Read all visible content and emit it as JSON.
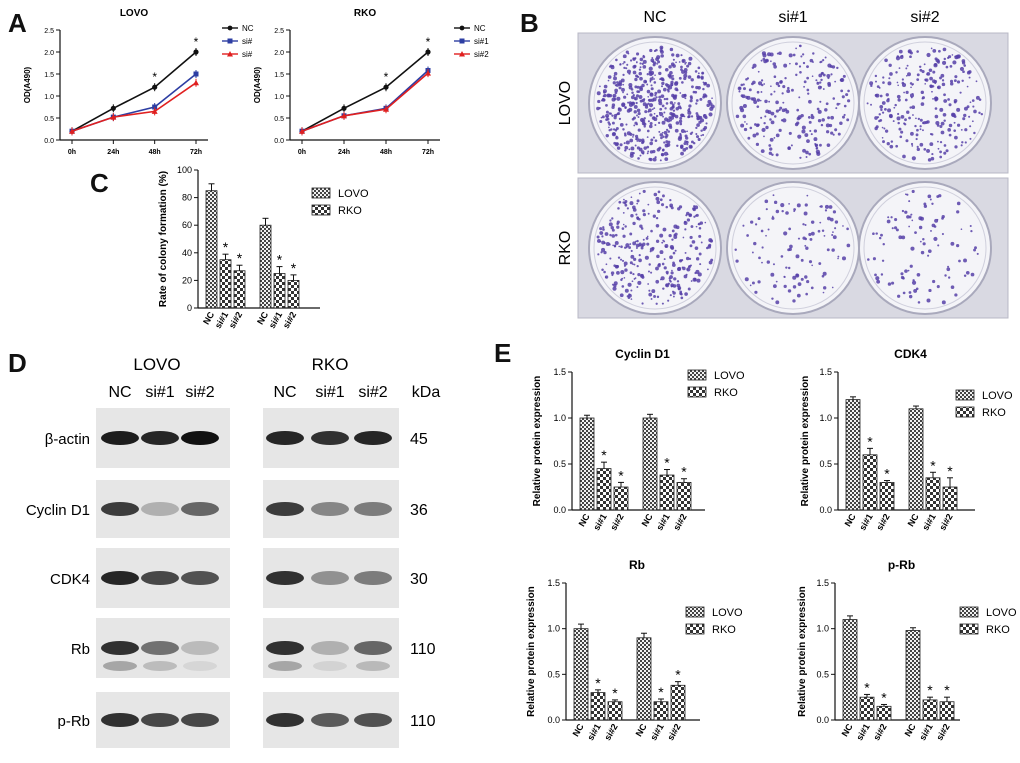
{
  "colors": {
    "nc": "#111111",
    "si1": "#2d3ea3",
    "si2": "#e02020",
    "dish_stain": "#5640a8",
    "blot_band": "#111111"
  },
  "panels": {
    "a": "A",
    "b": "B",
    "c": "C",
    "d": "D",
    "e": "E"
  },
  "chart_data": [
    {
      "id": "A-LOVO",
      "type": "line",
      "title": "LOVO",
      "xlabel": "",
      "ylabel": "OD(A490)",
      "categories": [
        "0h",
        "24h",
        "48h",
        "72h"
      ],
      "ylim": [
        0,
        2.5
      ],
      "yticks": [
        0.0,
        0.5,
        1.0,
        1.5,
        2.0,
        2.5
      ],
      "series": [
        {
          "name": "NC",
          "marker": "circle",
          "color": "#111111",
          "values": [
            0.2,
            0.72,
            1.2,
            2.0
          ]
        },
        {
          "name": "si#",
          "marker": "square",
          "color": "#2d3ea3",
          "values": [
            0.2,
            0.52,
            0.75,
            1.5
          ]
        },
        {
          "name": "si#",
          "marker": "triangle",
          "color": "#e02020",
          "values": [
            0.2,
            0.52,
            0.65,
            1.3
          ]
        }
      ],
      "stars": [
        "",
        "",
        "*",
        "*"
      ],
      "legend": "right"
    },
    {
      "id": "A-RKO",
      "type": "line",
      "title": "RKO",
      "xlabel": "",
      "ylabel": "OD(A490)",
      "categories": [
        "0h",
        "24h",
        "48h",
        "72h"
      ],
      "ylim": [
        0,
        2.5
      ],
      "yticks": [
        0.0,
        0.5,
        1.0,
        1.5,
        2.0,
        2.5
      ],
      "series": [
        {
          "name": "NC",
          "marker": "circle",
          "color": "#111111",
          "values": [
            0.2,
            0.72,
            1.2,
            2.0
          ]
        },
        {
          "name": "si#1",
          "marker": "square",
          "color": "#2d3ea3",
          "values": [
            0.2,
            0.55,
            0.72,
            1.58
          ]
        },
        {
          "name": "si#2",
          "marker": "triangle",
          "color": "#e02020",
          "values": [
            0.2,
            0.55,
            0.7,
            1.52
          ]
        }
      ],
      "stars": [
        "",
        "",
        "*",
        "*"
      ],
      "legend": "right"
    },
    {
      "id": "C",
      "type": "bar",
      "title": "",
      "xlabel": "",
      "ylabel": "Rate of colony formation (%)",
      "ylim": [
        0,
        100
      ],
      "yticks": [
        0,
        20,
        40,
        60,
        80,
        100
      ],
      "groups": [
        {
          "name": "LOVO",
          "categories": [
            "NC",
            "si#1",
            "si#2"
          ],
          "values": [
            85,
            35,
            27
          ],
          "errors": [
            5,
            4,
            4
          ],
          "stars": [
            "",
            "*",
            "*"
          ]
        },
        {
          "name": "RKO",
          "categories": [
            "NC",
            "si#1",
            "si#2"
          ],
          "values": [
            60,
            25,
            20
          ],
          "errors": [
            5,
            5,
            4
          ],
          "stars": [
            "",
            "*",
            "*"
          ]
        }
      ],
      "legend": [
        "LOVO",
        "RKO"
      ],
      "legend_position": "right"
    },
    {
      "id": "E-CyclinD1",
      "type": "bar",
      "title": "Cyclin D1",
      "xlabel": "",
      "ylabel": "Relative protein expression",
      "ylim": [
        0,
        1.5
      ],
      "yticks": [
        0.0,
        0.5,
        1.0,
        1.5
      ],
      "groups": [
        {
          "name": "LOVO",
          "categories": [
            "NC",
            "si#1",
            "si#2"
          ],
          "values": [
            1.0,
            0.45,
            0.25
          ],
          "errors": [
            0.03,
            0.07,
            0.05
          ],
          "stars": [
            "",
            "*",
            "*"
          ]
        },
        {
          "name": "RKO",
          "categories": [
            "NC",
            "si#1",
            "si#2"
          ],
          "values": [
            1.0,
            0.38,
            0.3
          ],
          "errors": [
            0.04,
            0.06,
            0.04
          ],
          "stars": [
            "",
            "*",
            "*"
          ]
        }
      ],
      "legend": [
        "LOVO",
        "RKO"
      ],
      "legend_position": "right"
    },
    {
      "id": "E-CDK4",
      "type": "bar",
      "title": "CDK4",
      "xlabel": "",
      "ylabel": "Relative protein expression",
      "ylim": [
        0,
        1.5
      ],
      "yticks": [
        0.0,
        0.5,
        1.0,
        1.5
      ],
      "groups": [
        {
          "name": "LOVO",
          "categories": [
            "NC",
            "si#1",
            "si#2"
          ],
          "values": [
            1.2,
            0.6,
            0.3
          ],
          "errors": [
            0.03,
            0.07,
            0.02
          ],
          "stars": [
            "",
            "*",
            "*"
          ]
        },
        {
          "name": "RKO",
          "categories": [
            "NC",
            "si#1",
            "si#2"
          ],
          "values": [
            1.1,
            0.35,
            0.25
          ],
          "errors": [
            0.03,
            0.06,
            0.1
          ],
          "stars": [
            "",
            "*",
            "*"
          ]
        }
      ],
      "legend": [
        "LOVO",
        "RKO"
      ],
      "legend_position": "right"
    },
    {
      "id": "E-Rb",
      "type": "bar",
      "title": "Rb",
      "xlabel": "",
      "ylabel": "Relative protein expression",
      "ylim": [
        0,
        1.5
      ],
      "yticks": [
        0.0,
        0.5,
        1.0,
        1.5
      ],
      "groups": [
        {
          "name": "LOVO",
          "categories": [
            "NC",
            "si#1",
            "si#2"
          ],
          "values": [
            1.0,
            0.3,
            0.2
          ],
          "errors": [
            0.05,
            0.03,
            0.02
          ],
          "stars": [
            "",
            "*",
            "*"
          ]
        },
        {
          "name": "RKO",
          "categories": [
            "NC",
            "si#1",
            "si#2"
          ],
          "values": [
            0.9,
            0.2,
            0.38
          ],
          "errors": [
            0.05,
            0.03,
            0.04
          ],
          "stars": [
            "",
            "*",
            "*"
          ]
        }
      ],
      "legend": [
        "LOVO",
        "RKO"
      ],
      "legend_position": "right"
    },
    {
      "id": "E-pRb",
      "type": "bar",
      "title": "p-Rb",
      "xlabel": "",
      "ylabel": "Relative protein expression",
      "ylim": [
        0,
        1.5
      ],
      "yticks": [
        0.0,
        0.5,
        1.0,
        1.5
      ],
      "groups": [
        {
          "name": "LOVO",
          "categories": [
            "NC",
            "si#1",
            "si#2"
          ],
          "values": [
            1.1,
            0.25,
            0.15
          ],
          "errors": [
            0.04,
            0.03,
            0.02
          ],
          "stars": [
            "",
            "*",
            "*"
          ]
        },
        {
          "name": "RKO",
          "categories": [
            "NC",
            "si#1",
            "si#2"
          ],
          "values": [
            0.98,
            0.22,
            0.2
          ],
          "errors": [
            0.03,
            0.03,
            0.05
          ],
          "stars": [
            "",
            "*",
            "*"
          ]
        }
      ],
      "legend": [
        "LOVO",
        "RKO"
      ],
      "legend_position": "right"
    }
  ],
  "colony": {
    "columns": [
      "NC",
      "si#1",
      "si#2"
    ],
    "rows": [
      "LOVO",
      "RKO"
    ],
    "density": [
      [
        1.0,
        0.45,
        0.5
      ],
      [
        0.6,
        0.22,
        0.2
      ]
    ]
  },
  "blot": {
    "groups": [
      {
        "name": "LOVO",
        "lanes": [
          "NC",
          "si#1",
          "si#2"
        ]
      },
      {
        "name": "RKO",
        "lanes": [
          "NC",
          "si#1",
          "si#2"
        ]
      }
    ],
    "kda_label": "kDa",
    "rows": [
      {
        "protein": "β-actin",
        "kda": "45",
        "intensity": [
          [
            0.95,
            0.9,
            1.0
          ],
          [
            0.9,
            0.85,
            0.9
          ]
        ]
      },
      {
        "protein": "Cyclin D1",
        "kda": "36",
        "intensity": [
          [
            0.8,
            0.25,
            0.6
          ],
          [
            0.8,
            0.45,
            0.5
          ]
        ]
      },
      {
        "protein": "CDK4",
        "kda": "30",
        "intensity": [
          [
            0.9,
            0.75,
            0.7
          ],
          [
            0.85,
            0.4,
            0.5
          ]
        ]
      },
      {
        "protein": "Rb",
        "kda": "110",
        "intensity": [
          [
            0.85,
            0.55,
            0.2
          ],
          [
            0.85,
            0.25,
            0.6
          ]
        ]
      },
      {
        "protein": "p-Rb",
        "kda": "110",
        "intensity": [
          [
            0.85,
            0.75,
            0.75
          ],
          [
            0.85,
            0.65,
            0.7
          ]
        ]
      }
    ]
  }
}
